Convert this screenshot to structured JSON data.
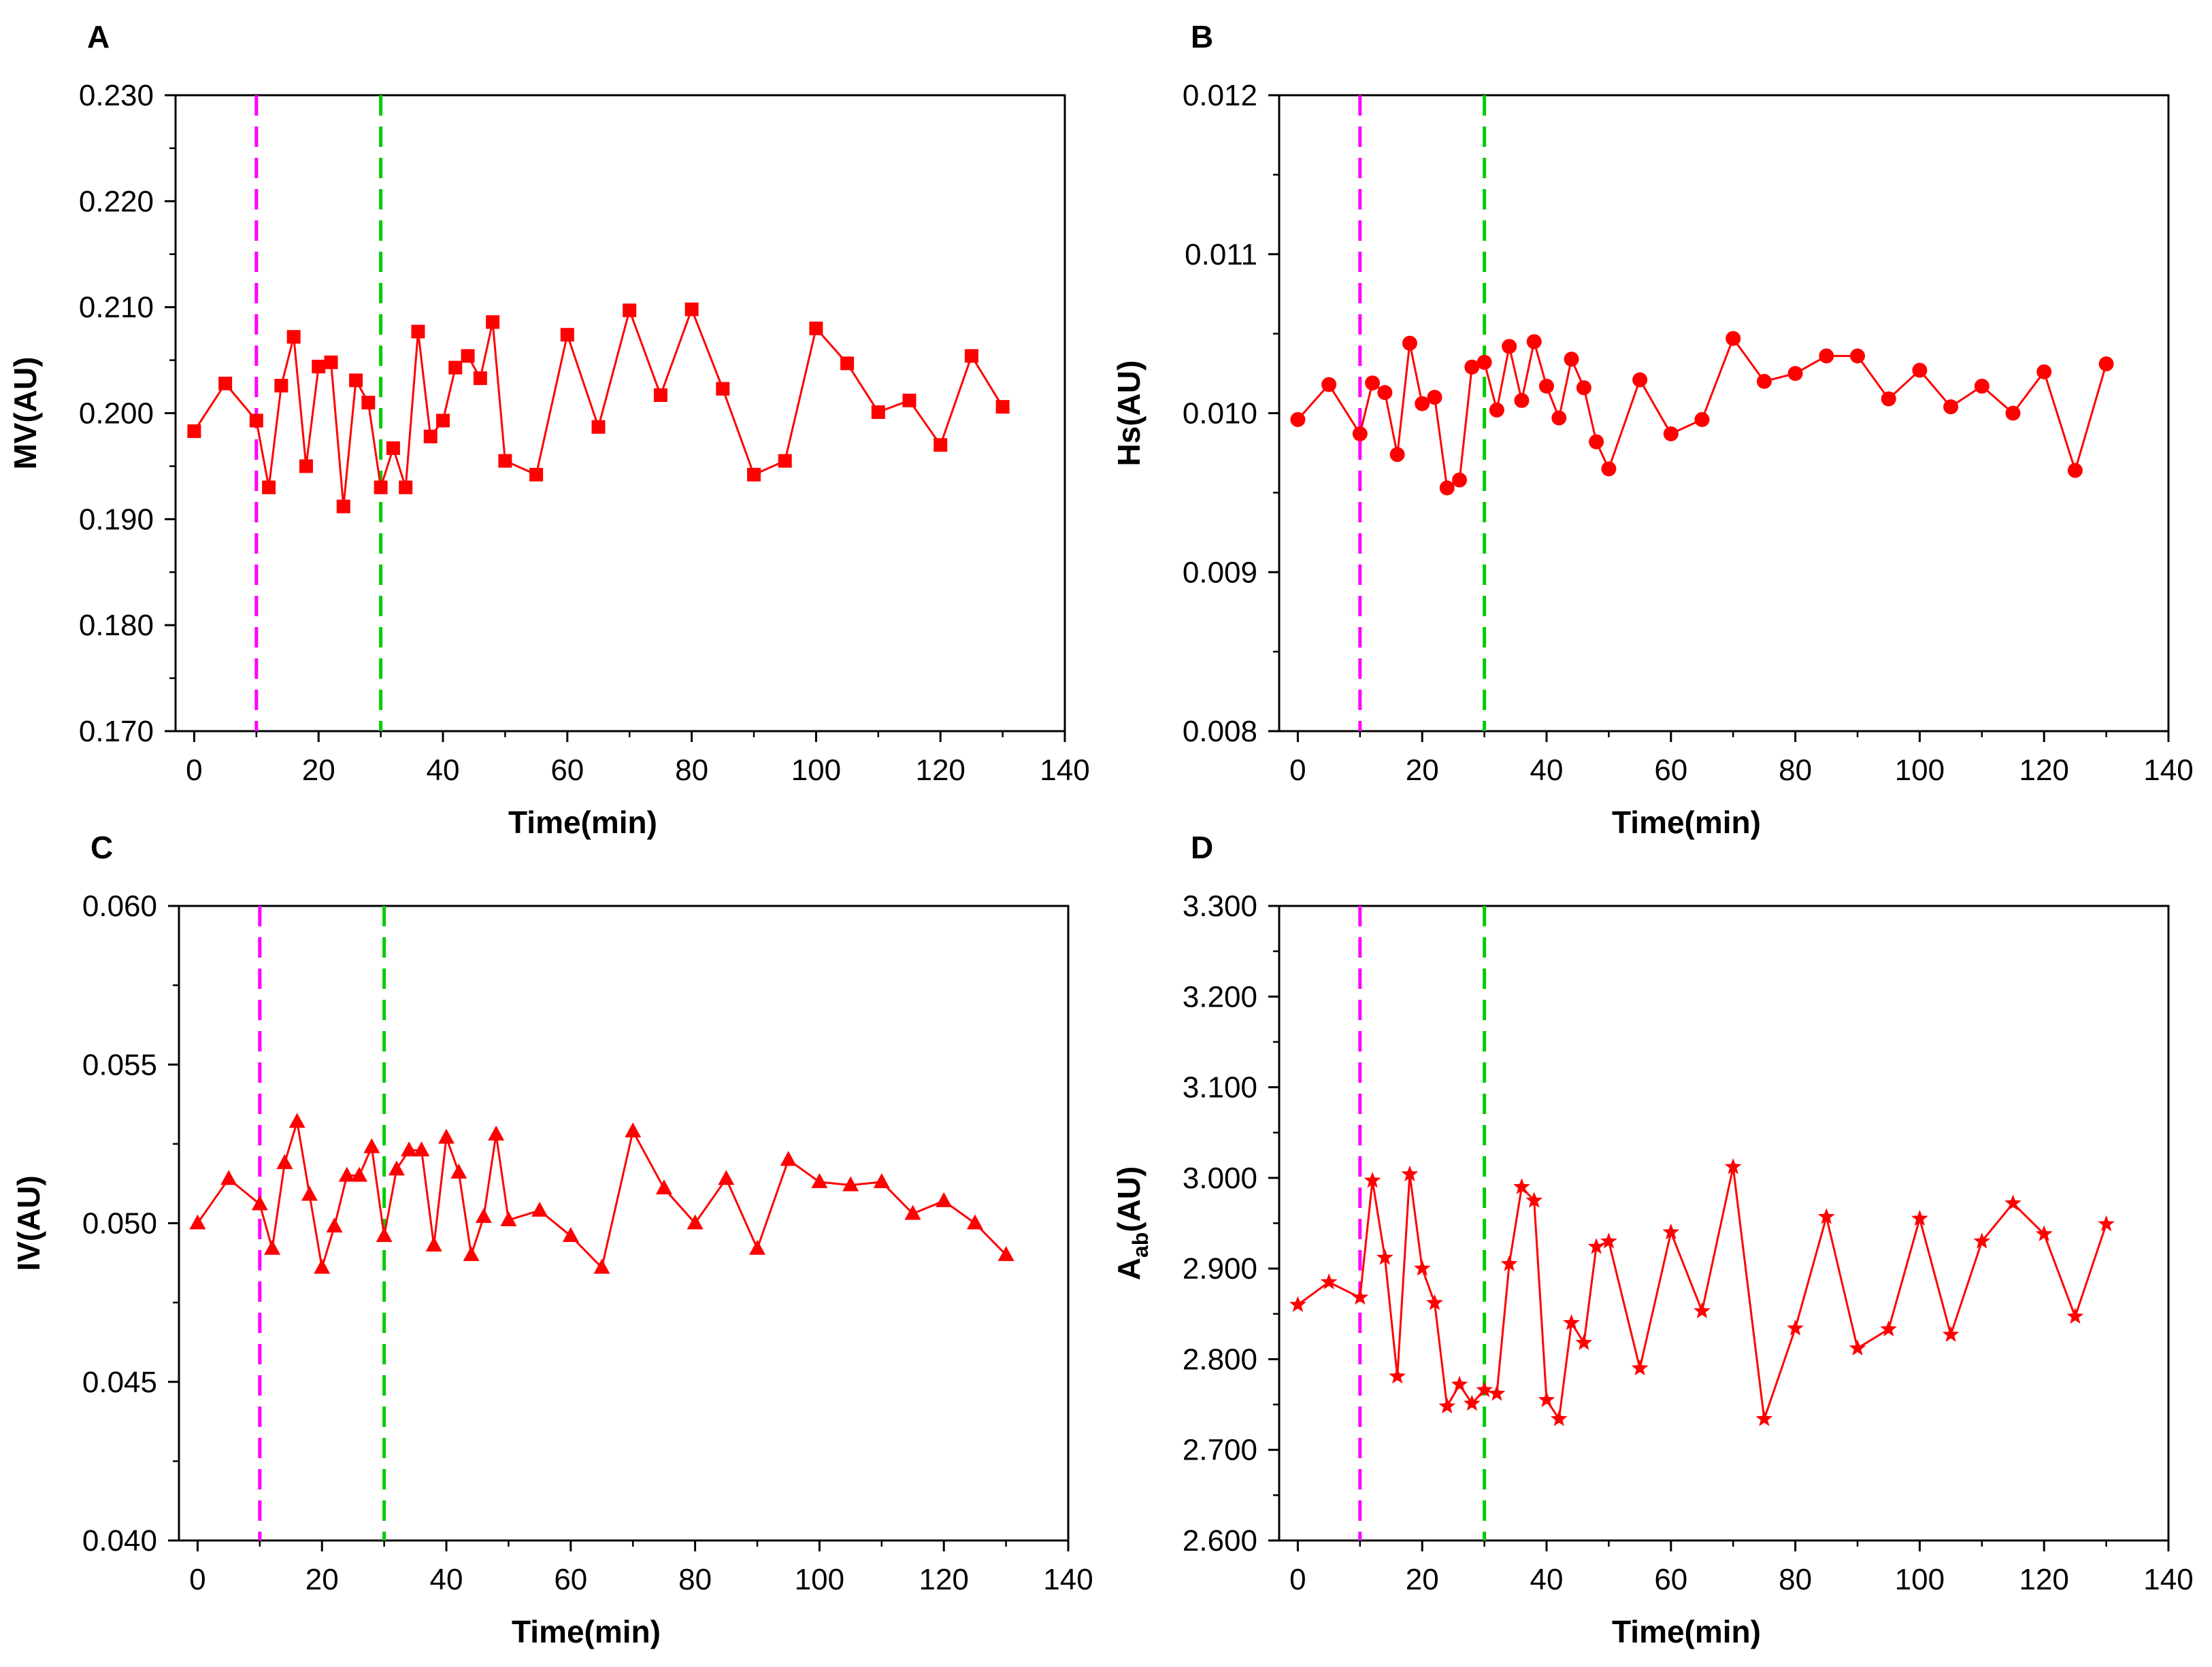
{
  "chart_data": [
    {
      "id": "A",
      "type": "line",
      "panel_label": "A",
      "xlabel": "Time(min)",
      "ylabel": "MV(AU)",
      "ylabel_sub": "",
      "ylabel_tail": "",
      "xlim": [
        -3,
        140
      ],
      "ylim": [
        0.17,
        0.23
      ],
      "xticks": [
        0,
        20,
        40,
        60,
        80,
        100,
        120,
        140
      ],
      "yticks": [
        0.17,
        0.18,
        0.19,
        0.2,
        0.21,
        0.22,
        0.23
      ],
      "ytick_decimals": 3,
      "marker": "square",
      "color": "#ff0000",
      "vlines": [
        {
          "x": 10,
          "color": "#ff00ff"
        },
        {
          "x": 30,
          "color": "#00cc00"
        }
      ],
      "x": [
        0,
        5,
        10,
        12,
        14,
        16,
        18,
        20,
        22,
        24,
        26,
        28,
        30,
        32,
        34,
        36,
        38,
        40,
        42,
        44,
        46,
        48,
        50,
        55,
        60,
        65,
        70,
        75,
        80,
        85,
        90,
        95,
        100,
        105,
        110,
        115,
        120,
        125,
        130
      ],
      "y": [
        0.1983,
        0.2028,
        0.1993,
        0.193,
        0.2026,
        0.2072,
        0.195,
        0.2044,
        0.2048,
        0.1912,
        0.2031,
        0.201,
        0.193,
        0.1967,
        0.193,
        0.2077,
        0.1978,
        0.1993,
        0.2043,
        0.2054,
        0.2033,
        0.2086,
        0.1955,
        0.1942,
        0.2074,
        0.1987,
        0.2097,
        0.2017,
        0.2098,
        0.2023,
        0.1942,
        0.1955,
        0.208,
        0.2047,
        0.2001,
        0.2012,
        0.197,
        0.2054,
        0.2006
      ]
    },
    {
      "id": "B",
      "type": "line",
      "panel_label": "B",
      "xlabel": "Time(min)",
      "ylabel": "Hs(AU)",
      "ylabel_sub": "",
      "ylabel_tail": "",
      "xlim": [
        -3,
        140
      ],
      "ylim": [
        0.008,
        0.012
      ],
      "xticks": [
        0,
        20,
        40,
        60,
        80,
        100,
        120,
        140
      ],
      "yticks": [
        0.008,
        0.009,
        0.01,
        0.011,
        0.012
      ],
      "ytick_decimals": 3,
      "marker": "circle",
      "color": "#ff0000",
      "vlines": [
        {
          "x": 10,
          "color": "#ff00ff"
        },
        {
          "x": 30,
          "color": "#00cc00"
        }
      ],
      "x": [
        0,
        5,
        10,
        12,
        14,
        16,
        18,
        20,
        22,
        24,
        26,
        28,
        30,
        32,
        34,
        36,
        38,
        40,
        42,
        44,
        46,
        48,
        50,
        55,
        60,
        65,
        70,
        75,
        80,
        85,
        90,
        95,
        100,
        105,
        110,
        115,
        120,
        125,
        130
      ],
      "y": [
        0.00996,
        0.01018,
        0.00987,
        0.01019,
        0.01013,
        0.00974,
        0.01044,
        0.01006,
        0.0101,
        0.00953,
        0.00958,
        0.01029,
        0.01032,
        0.01002,
        0.01042,
        0.01008,
        0.01045,
        0.01017,
        0.00997,
        0.01034,
        0.01016,
        0.00982,
        0.00965,
        0.01021,
        0.00987,
        0.00996,
        0.01047,
        0.0102,
        0.01025,
        0.01036,
        0.01036,
        0.01009,
        0.01027,
        0.01004,
        0.01017,
        0.01,
        0.01026,
        0.00964,
        0.01031
      ]
    },
    {
      "id": "C",
      "type": "line",
      "panel_label": "C",
      "xlabel": "Time(min)",
      "ylabel": "IV(AU)",
      "ylabel_sub": "",
      "ylabel_tail": "",
      "xlim": [
        -3,
        140
      ],
      "ylim": [
        0.04,
        0.06
      ],
      "xticks": [
        0,
        20,
        40,
        60,
        80,
        100,
        120,
        140
      ],
      "yticks": [
        0.04,
        0.045,
        0.05,
        0.055,
        0.06
      ],
      "ytick_decimals": 3,
      "marker": "triangle",
      "color": "#ff0000",
      "vlines": [
        {
          "x": 10,
          "color": "#ff00ff"
        },
        {
          "x": 30,
          "color": "#00cc00"
        }
      ],
      "x": [
        0,
        5,
        10,
        12,
        14,
        16,
        18,
        20,
        22,
        24,
        26,
        28,
        30,
        32,
        34,
        36,
        38,
        40,
        42,
        44,
        46,
        48,
        50,
        55,
        60,
        65,
        70,
        75,
        80,
        85,
        90,
        95,
        100,
        105,
        110,
        115,
        120,
        125,
        130
      ],
      "y": [
        0.05,
        0.0514,
        0.0506,
        0.0492,
        0.0519,
        0.0532,
        0.0509,
        0.0486,
        0.0499,
        0.0515,
        0.0515,
        0.0524,
        0.0496,
        0.0517,
        0.0523,
        0.0523,
        0.0493,
        0.0527,
        0.0516,
        0.049,
        0.0502,
        0.0528,
        0.0501,
        0.0504,
        0.0496,
        0.0486,
        0.0529,
        0.0511,
        0.05,
        0.0514,
        0.0492,
        0.052,
        0.0513,
        0.0512,
        0.0513,
        0.0503,
        0.0507,
        0.05,
        0.049
      ]
    },
    {
      "id": "D",
      "type": "line",
      "panel_label": "D",
      "xlabel": "Time(min)",
      "ylabel": "A",
      "ylabel_sub": "ab",
      "ylabel_tail": "(AU)",
      "xlim": [
        -3,
        140
      ],
      "ylim": [
        2.6,
        3.3
      ],
      "xticks": [
        0,
        20,
        40,
        60,
        80,
        100,
        120,
        140
      ],
      "yticks": [
        2.6,
        2.7,
        2.8,
        2.9,
        3.0,
        3.1,
        3.2,
        3.3
      ],
      "ytick_decimals": 3,
      "marker": "star",
      "color": "#ff0000",
      "vlines": [
        {
          "x": 10,
          "color": "#ff00ff"
        },
        {
          "x": 30,
          "color": "#00cc00"
        }
      ],
      "x": [
        0,
        5,
        10,
        12,
        14,
        16,
        18,
        20,
        22,
        24,
        26,
        28,
        30,
        32,
        34,
        36,
        38,
        40,
        42,
        44,
        46,
        48,
        50,
        55,
        60,
        65,
        70,
        75,
        80,
        85,
        90,
        95,
        100,
        105,
        110,
        115,
        120,
        125,
        130
      ],
      "y": [
        2.86,
        2.885,
        2.868,
        2.997,
        2.912,
        2.781,
        3.004,
        2.9,
        2.862,
        2.748,
        2.772,
        2.751,
        2.766,
        2.762,
        2.905,
        2.99,
        2.975,
        2.755,
        2.734,
        2.84,
        2.818,
        2.924,
        2.93,
        2.79,
        2.94,
        2.853,
        3.012,
        2.734,
        2.834,
        2.957,
        2.812,
        2.833,
        2.955,
        2.827,
        2.93,
        2.972,
        2.938,
        2.847,
        2.949
      ]
    }
  ]
}
